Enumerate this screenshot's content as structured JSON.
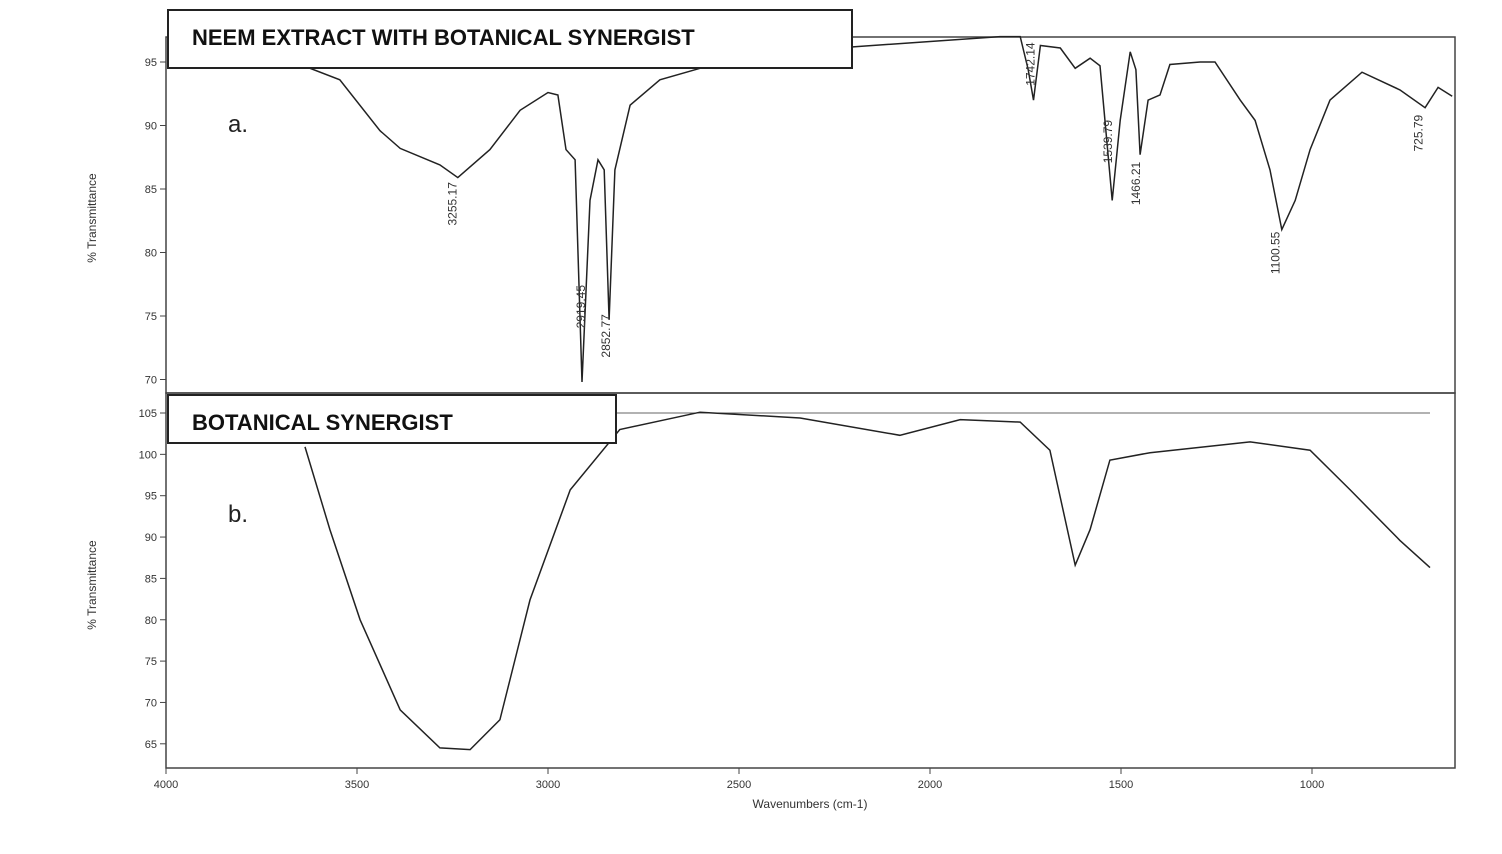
{
  "chart_data": [
    {
      "type": "line",
      "title": "NEEM EXTRACT WITH BOTANICAL SYNERGIST",
      "panel_label": "a.",
      "ylabel": "% Transmittance",
      "xlabel": "",
      "xlim": [
        4000,
        630
      ],
      "ylim": [
        69,
        97
      ],
      "x_reversed": true,
      "yticks": [
        95,
        90,
        85,
        80,
        75,
        70
      ],
      "line_color": "#222222",
      "series": [
        {
          "x": [
            3990,
            3623,
            3545,
            3440,
            3387,
            3283,
            3236,
            3152,
            3073,
            3000,
            2974,
            2953,
            2929,
            2911,
            2890,
            2869,
            2853,
            2840,
            2825,
            2785,
            2707,
            2602,
            2340,
            1817,
            1764,
            1743,
            1729,
            1711,
            1659,
            1620,
            1581,
            1555,
            1523,
            1502,
            1476,
            1461,
            1450,
            1429,
            1398,
            1372,
            1293,
            1254,
            1188,
            1149,
            1110,
            1079,
            1044,
            1005,
            953,
            869,
            770,
            704,
            670,
            633
          ],
          "y": [
            94.5,
            94.5,
            93.6,
            89.6,
            88.2,
            86.9,
            85.9,
            88.1,
            91.2,
            92.6,
            92.4,
            88.1,
            87.3,
            69.8,
            84.1,
            87.3,
            86.5,
            74.7,
            86.5,
            91.6,
            93.6,
            94.5,
            95.9,
            97,
            97,
            94.4,
            92,
            96.3,
            96.1,
            94.5,
            95.3,
            94.7,
            84.1,
            90.4,
            95.8,
            94.4,
            87.7,
            92,
            92.4,
            94.8,
            95,
            95,
            92,
            90.4,
            86.5,
            81.8,
            84.1,
            88.1,
            92,
            94.2,
            92.8,
            91.4,
            93,
            92.3
          ]
        }
      ],
      "peak_labels": [
        {
          "text": "3255.17",
          "y": 85.7
        },
        {
          "text": "2919.45",
          "y": 77.6
        },
        {
          "text": "2852.77",
          "y": 75.3
        },
        {
          "text": "1742.14",
          "y": 96.7
        },
        {
          "text": "1539.79",
          "y": 90.6
        },
        {
          "text": "1466.21",
          "y": 87.3
        },
        {
          "text": "1100.55",
          "y": 81.8
        },
        {
          "text": "725.79",
          "y": 91
        }
      ]
    },
    {
      "type": "line",
      "title": "BOTANICAL SYNERGIST",
      "panel_label": "b.",
      "ylabel": "% Transmittance",
      "xlabel": "Wavenumbers (cm-1)",
      "xlim": [
        4000,
        630
      ],
      "ylim": [
        62,
        107
      ],
      "x_reversed": true,
      "xticks": [
        4000,
        3500,
        3000,
        2500,
        2000,
        1500,
        1000
      ],
      "yticks": [
        105,
        100,
        95,
        90,
        85,
        80,
        75,
        70,
        65
      ],
      "line_color": "#222222",
      "series": [
        {
          "x": [
            3636,
            3571,
            3492,
            3387,
            3283,
            3204,
            3126,
            3047,
            2942,
            2812,
            2602,
            2340,
            2079,
            1921,
            1764,
            1686,
            1620,
            1581,
            1529,
            1424,
            1162,
            1005,
            900,
            770,
            691
          ],
          "y": [
            100.9,
            90.9,
            80,
            69.1,
            64.5,
            64.3,
            67.9,
            82.4,
            95.7,
            103,
            105.1,
            104.4,
            102.3,
            104.2,
            103.9,
            100.5,
            86.6,
            90.9,
            99.3,
            100.2,
            101.5,
            100.5,
            95.7,
            89.6,
            86.3
          ]
        }
      ]
    }
  ]
}
